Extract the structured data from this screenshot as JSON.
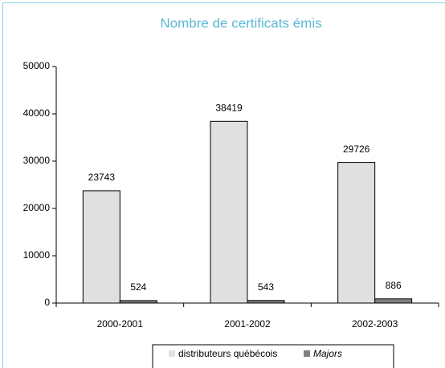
{
  "chart_data": {
    "type": "bar",
    "title": "Nombre de certificats émis",
    "categories": [
      "2000-2001",
      "2001-2002",
      "2002-2003"
    ],
    "series": [
      {
        "name": "distributeurs québécois",
        "color": "#e0e0e0",
        "values": [
          23743,
          38419,
          29726
        ]
      },
      {
        "name": "Majors",
        "color": "#808080",
        "values": [
          524,
          543,
          886
        ]
      }
    ],
    "ylim": [
      0,
      50000
    ],
    "yticks": [
      0,
      10000,
      20000,
      30000,
      40000,
      50000
    ],
    "grid": false
  }
}
